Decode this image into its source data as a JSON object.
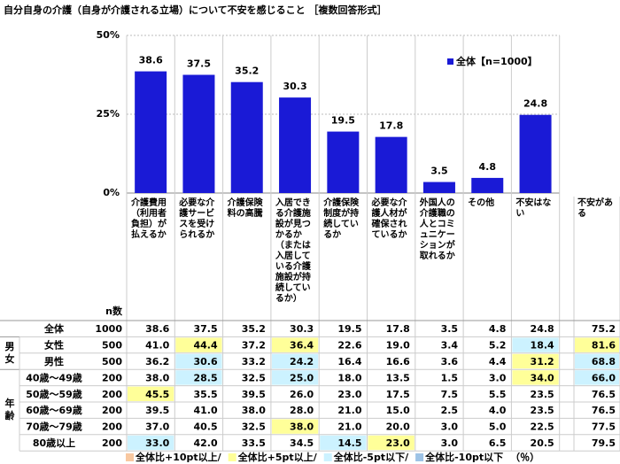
{
  "chart_data": {
    "type": "bar",
    "title": "自分自身の介護（自身が介護される立場）について不安を感じること ［複数回答形式］",
    "categories": [
      "介護費用（利用者負担）が払えるか",
      "必要な介護サービスを受けられるか",
      "介護保険料の高騰",
      "入居できる介護施設が見つかるか（または入居している介護施設が持続しているか）",
      "介護保険制度が持続しているか",
      "必要な介護人材が確保されているか",
      "外国人の介護職の人とコミュニケーションが取れるか",
      "その他",
      "不安はない"
    ],
    "series": [
      {
        "name": "全体【n=1000】",
        "color": "#1a1ad6",
        "values": [
          38.6,
          37.5,
          35.2,
          30.3,
          19.5,
          17.8,
          3.5,
          4.8,
          24.8
        ]
      }
    ],
    "ylim": [
      0,
      50
    ],
    "yticks": [
      {
        "value": 0,
        "label": "0%"
      },
      {
        "value": 25,
        "label": "25%"
      },
      {
        "value": 50,
        "label": "50%"
      }
    ],
    "grid": true
  },
  "table": {
    "n_header": "n数",
    "extra_header": "不安がある",
    "sections": [
      {
        "rows": [
          {
            "label": "全体",
            "n": "1000",
            "values": [
              "38.6",
              "37.5",
              "35.2",
              "30.3",
              "19.5",
              "17.8",
              "3.5",
              "4.8",
              "24.8"
            ],
            "extra": "75.2",
            "colors": [
              null,
              null,
              null,
              null,
              null,
              null,
              null,
              null,
              null
            ],
            "extra_color": null
          }
        ]
      },
      {
        "label": "男女",
        "rows": [
          {
            "label": "女性",
            "n": "500",
            "values": [
              "41.0",
              "44.4",
              "37.2",
              "36.4",
              "22.6",
              "19.0",
              "3.4",
              "5.2",
              "18.4"
            ],
            "extra": "81.6",
            "colors": [
              null,
              "#ffff99",
              null,
              "#ffff99",
              null,
              null,
              null,
              null,
              "#ccf2ff"
            ],
            "extra_color": "#ffff99"
          },
          {
            "label": "男性",
            "n": "500",
            "values": [
              "36.2",
              "30.6",
              "33.2",
              "24.2",
              "16.4",
              "16.6",
              "3.6",
              "4.4",
              "31.2"
            ],
            "extra": "68.8",
            "colors": [
              null,
              "#ccf2ff",
              null,
              "#ccf2ff",
              null,
              null,
              null,
              null,
              "#ffff99"
            ],
            "extra_color": "#ccf2ff"
          }
        ]
      },
      {
        "label": "年齢",
        "rows": [
          {
            "label": "40歳～49歳",
            "n": "200",
            "values": [
              "38.0",
              "28.5",
              "32.5",
              "25.0",
              "18.0",
              "13.5",
              "1.5",
              "3.0",
              "34.0"
            ],
            "extra": "66.0",
            "colors": [
              null,
              "#ccf2ff",
              null,
              "#ccf2ff",
              null,
              null,
              null,
              null,
              "#ffff99"
            ],
            "extra_color": "#ccf2ff"
          },
          {
            "label": "50歳～59歳",
            "n": "200",
            "values": [
              "45.5",
              "35.5",
              "39.5",
              "26.0",
              "23.0",
              "17.5",
              "7.5",
              "5.5",
              "23.5"
            ],
            "extra": "76.5",
            "colors": [
              "#ffff99",
              null,
              null,
              null,
              null,
              null,
              null,
              null,
              null
            ],
            "extra_color": null
          },
          {
            "label": "60歳～69歳",
            "n": "200",
            "values": [
              "39.5",
              "41.0",
              "38.0",
              "28.0",
              "21.0",
              "15.0",
              "2.5",
              "4.0",
              "23.5"
            ],
            "extra": "76.5",
            "colors": [
              null,
              null,
              null,
              null,
              null,
              null,
              null,
              null,
              null
            ],
            "extra_color": null
          },
          {
            "label": "70歳～79歳",
            "n": "200",
            "values": [
              "37.0",
              "40.5",
              "32.5",
              "38.0",
              "21.0",
              "20.0",
              "3.0",
              "5.0",
              "22.5"
            ],
            "extra": "77.5",
            "colors": [
              null,
              null,
              null,
              "#ffff99",
              null,
              null,
              null,
              null,
              null
            ],
            "extra_color": null
          },
          {
            "label": "80歳以上",
            "n": "200",
            "values": [
              "33.0",
              "42.0",
              "33.5",
              "34.5",
              "14.5",
              "23.0",
              "3.0",
              "6.5",
              "20.5"
            ],
            "extra": "79.5",
            "colors": [
              "#ccf2ff",
              null,
              null,
              null,
              "#ccf2ff",
              "#ffff99",
              null,
              null,
              null
            ],
            "extra_color": null
          }
        ]
      }
    ],
    "legend": [
      {
        "label": "全体比+10pt以上/",
        "color": "#f8c8a0"
      },
      {
        "label": "全体比+5pt以上/",
        "color": "#ffff99"
      },
      {
        "label": "全体比-5pt以下/",
        "color": "#ccf2ff"
      },
      {
        "label": "全体比-10pt以下",
        "color": "#9dc3e6"
      }
    ],
    "unit": "（％）"
  }
}
